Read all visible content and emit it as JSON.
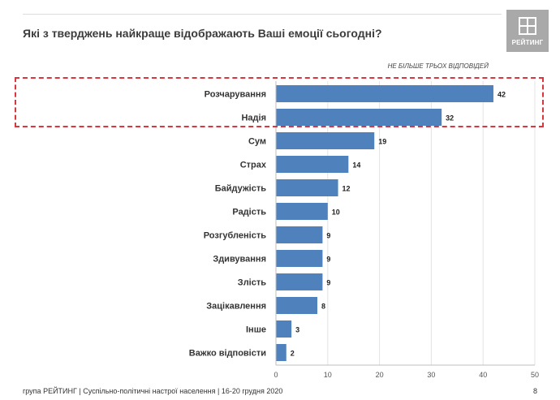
{
  "header": {
    "title": "Які з тверджень найкраще відображають Ваші емоції сьогодні?",
    "logo_text": "РЕЙТИНГ",
    "note": "НЕ БІЛЬШЕ ТРЬОХ ВІДПОВІДЕЙ"
  },
  "chart_data": {
    "type": "bar",
    "orientation": "horizontal",
    "categories": [
      "Розчарування",
      "Надія",
      "Сум",
      "Страх",
      "Байдужість",
      "Радість",
      "Розгубленість",
      "Здивування",
      "Злість",
      "Зацікавлення",
      "Інше",
      "Важко відповісти"
    ],
    "values": [
      42,
      32,
      19,
      14,
      12,
      10,
      9,
      9,
      9,
      8,
      3,
      2
    ],
    "xlim": [
      0,
      50
    ],
    "xticks": [
      0,
      10,
      20,
      30,
      40,
      50
    ],
    "grid": true,
    "highlighted_categories": [
      "Розчарування",
      "Надія"
    ],
    "colors": {
      "bar": "#4f81bd",
      "highlight_border": "#d9363e"
    }
  },
  "footer": {
    "source": "група РЕЙТИНГ | Суспільно-політичні настрої населення | 16-20 грудня 2020",
    "page_number": "8"
  }
}
